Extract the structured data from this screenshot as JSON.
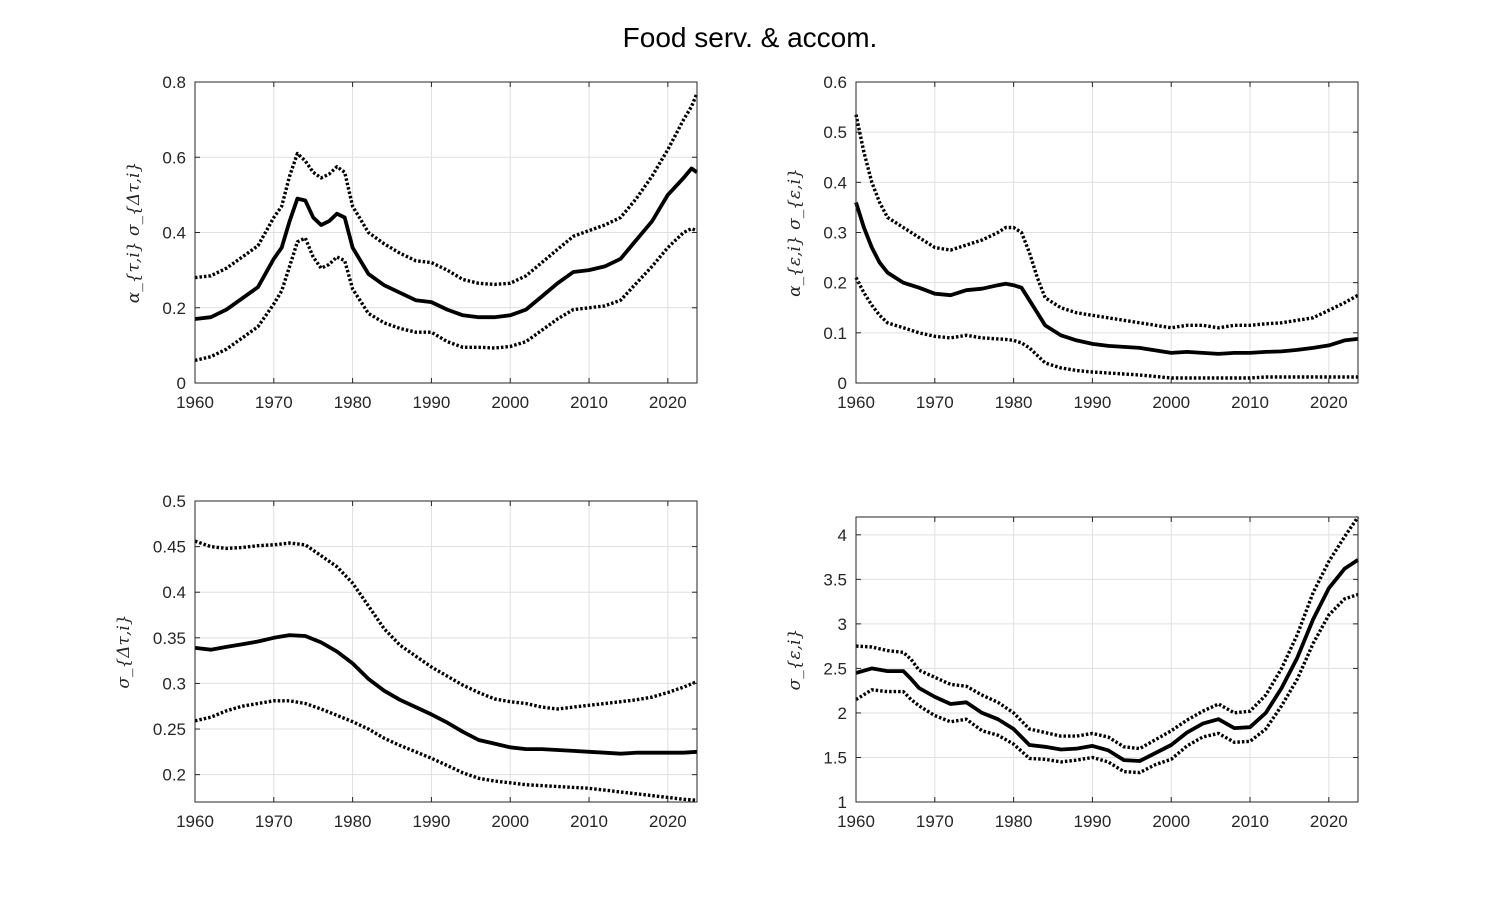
{
  "title": "Food serv. & accom.",
  "chart_data": [
    {
      "type": "line",
      "ylabel": "α_{τ,i} σ_{Δτ,i}",
      "xlim": [
        1960,
        2023.7
      ],
      "ylim": [
        0,
        0.8
      ],
      "xticks": [
        1960,
        1970,
        1980,
        1990,
        2000,
        2010,
        2020
      ],
      "yticks": [
        0,
        0.2,
        0.4,
        0.6,
        0.8
      ],
      "ytick_labels": [
        "0",
        "0.2",
        "0.4",
        "0.6",
        "0.8"
      ],
      "grid": true,
      "series": [
        {
          "style": "solid",
          "x": [
            1960,
            1962,
            1964,
            1966,
            1968,
            1970,
            1971,
            1972,
            1973,
            1974,
            1975,
            1976,
            1977,
            1978,
            1979,
            1980,
            1982,
            1984,
            1986,
            1988,
            1990,
            1992,
            1994,
            1996,
            1998,
            2000,
            2002,
            2004,
            2006,
            2008,
            2010,
            2012,
            2014,
            2016,
            2018,
            2020,
            2022,
            2023,
            2023.7
          ],
          "y": [
            0.17,
            0.175,
            0.195,
            0.225,
            0.255,
            0.33,
            0.36,
            0.43,
            0.49,
            0.485,
            0.44,
            0.42,
            0.43,
            0.45,
            0.44,
            0.36,
            0.29,
            0.26,
            0.24,
            0.22,
            0.215,
            0.195,
            0.18,
            0.175,
            0.175,
            0.18,
            0.195,
            0.23,
            0.265,
            0.295,
            0.3,
            0.31,
            0.33,
            0.38,
            0.43,
            0.5,
            0.545,
            0.57,
            0.56
          ]
        },
        {
          "style": "dotted",
          "x": [
            1960,
            1962,
            1964,
            1966,
            1968,
            1970,
            1971,
            1972,
            1973,
            1974,
            1975,
            1976,
            1977,
            1978,
            1979,
            1980,
            1982,
            1984,
            1986,
            1988,
            1990,
            1992,
            1994,
            1996,
            1998,
            2000,
            2002,
            2004,
            2006,
            2008,
            2010,
            2012,
            2014,
            2016,
            2018,
            2020,
            2022,
            2023,
            2023.7
          ],
          "y": [
            0.28,
            0.285,
            0.305,
            0.335,
            0.365,
            0.44,
            0.47,
            0.55,
            0.61,
            0.59,
            0.56,
            0.545,
            0.555,
            0.575,
            0.56,
            0.47,
            0.4,
            0.37,
            0.345,
            0.325,
            0.32,
            0.3,
            0.275,
            0.265,
            0.262,
            0.265,
            0.285,
            0.32,
            0.355,
            0.39,
            0.405,
            0.42,
            0.44,
            0.49,
            0.55,
            0.62,
            0.7,
            0.735,
            0.77
          ]
        },
        {
          "style": "dotted",
          "x": [
            1960,
            1962,
            1964,
            1966,
            1968,
            1970,
            1971,
            1972,
            1973,
            1974,
            1975,
            1976,
            1977,
            1978,
            1979,
            1980,
            1982,
            1984,
            1986,
            1988,
            1990,
            1992,
            1994,
            1996,
            1998,
            2000,
            2002,
            2004,
            2006,
            2008,
            2010,
            2012,
            2014,
            2016,
            2018,
            2020,
            2022,
            2023,
            2023.7
          ],
          "y": [
            0.06,
            0.07,
            0.09,
            0.12,
            0.15,
            0.21,
            0.245,
            0.31,
            0.375,
            0.385,
            0.335,
            0.305,
            0.315,
            0.335,
            0.325,
            0.25,
            0.185,
            0.16,
            0.145,
            0.135,
            0.135,
            0.11,
            0.095,
            0.095,
            0.093,
            0.097,
            0.11,
            0.14,
            0.17,
            0.195,
            0.2,
            0.205,
            0.22,
            0.265,
            0.31,
            0.36,
            0.4,
            0.41,
            0.405
          ]
        }
      ]
    },
    {
      "type": "line",
      "ylabel": "α_{ε,i} σ_{ε,i}",
      "xlim": [
        1960,
        2023.7
      ],
      "ylim": [
        0,
        0.6
      ],
      "xticks": [
        1960,
        1970,
        1980,
        1990,
        2000,
        2010,
        2020
      ],
      "yticks": [
        0,
        0.1,
        0.2,
        0.3,
        0.4,
        0.5,
        0.6
      ],
      "ytick_labels": [
        "0",
        "0.1",
        "0.2",
        "0.3",
        "0.4",
        "0.5",
        "0.6"
      ],
      "grid": true,
      "series": [
        {
          "style": "solid",
          "x": [
            1960,
            1961,
            1962,
            1963,
            1964,
            1966,
            1968,
            1970,
            1972,
            1974,
            1976,
            1978,
            1979,
            1980,
            1981,
            1982,
            1983,
            1984,
            1986,
            1988,
            1990,
            1992,
            1994,
            1996,
            1998,
            2000,
            2002,
            2004,
            2006,
            2008,
            2010,
            2012,
            2014,
            2016,
            2018,
            2020,
            2022,
            2023.7
          ],
          "y": [
            0.36,
            0.31,
            0.27,
            0.24,
            0.22,
            0.2,
            0.19,
            0.178,
            0.175,
            0.185,
            0.188,
            0.195,
            0.198,
            0.195,
            0.19,
            0.165,
            0.14,
            0.115,
            0.095,
            0.085,
            0.078,
            0.074,
            0.072,
            0.07,
            0.065,
            0.06,
            0.062,
            0.06,
            0.058,
            0.06,
            0.06,
            0.062,
            0.063,
            0.066,
            0.07,
            0.075,
            0.085,
            0.088
          ]
        },
        {
          "style": "dotted",
          "x": [
            1960,
            1961,
            1962,
            1963,
            1964,
            1966,
            1968,
            1970,
            1972,
            1974,
            1976,
            1978,
            1979,
            1980,
            1981,
            1982,
            1983,
            1984,
            1986,
            1988,
            1990,
            1992,
            1994,
            1996,
            1998,
            2000,
            2002,
            2004,
            2006,
            2008,
            2010,
            2012,
            2014,
            2016,
            2018,
            2020,
            2022,
            2023.7
          ],
          "y": [
            0.535,
            0.46,
            0.4,
            0.36,
            0.33,
            0.31,
            0.29,
            0.27,
            0.265,
            0.275,
            0.285,
            0.3,
            0.31,
            0.31,
            0.3,
            0.26,
            0.21,
            0.17,
            0.15,
            0.14,
            0.135,
            0.13,
            0.125,
            0.12,
            0.115,
            0.11,
            0.115,
            0.115,
            0.11,
            0.115,
            0.115,
            0.118,
            0.12,
            0.125,
            0.13,
            0.145,
            0.16,
            0.175
          ]
        },
        {
          "style": "dotted",
          "x": [
            1960,
            1961,
            1962,
            1963,
            1964,
            1966,
            1968,
            1970,
            1972,
            1974,
            1976,
            1978,
            1979,
            1980,
            1981,
            1982,
            1983,
            1984,
            1986,
            1988,
            1990,
            1992,
            1994,
            1996,
            1998,
            2000,
            2002,
            2004,
            2006,
            2008,
            2010,
            2012,
            2014,
            2016,
            2018,
            2020,
            2022,
            2023.7
          ],
          "y": [
            0.21,
            0.18,
            0.155,
            0.135,
            0.12,
            0.11,
            0.1,
            0.093,
            0.09,
            0.095,
            0.09,
            0.088,
            0.087,
            0.085,
            0.08,
            0.07,
            0.055,
            0.04,
            0.03,
            0.025,
            0.022,
            0.02,
            0.018,
            0.016,
            0.013,
            0.01,
            0.01,
            0.01,
            0.01,
            0.01,
            0.01,
            0.012,
            0.012,
            0.012,
            0.012,
            0.012,
            0.012,
            0.012
          ]
        }
      ]
    },
    {
      "type": "line",
      "ylabel": "σ_{Δτ,i}",
      "xlim": [
        1960,
        2023.7
      ],
      "ylim": [
        0.17,
        0.5
      ],
      "xticks": [
        1960,
        1970,
        1980,
        1990,
        2000,
        2010,
        2020
      ],
      "yticks": [
        0.2,
        0.25,
        0.3,
        0.35,
        0.4,
        0.45,
        0.5
      ],
      "ytick_labels": [
        "0.2",
        "0.25",
        "0.3",
        "0.35",
        "0.4",
        "0.45",
        "0.5"
      ],
      "grid": true,
      "series": [
        {
          "style": "solid",
          "x": [
            1960,
            1962,
            1964,
            1966,
            1968,
            1970,
            1972,
            1974,
            1976,
            1978,
            1980,
            1982,
            1984,
            1986,
            1988,
            1990,
            1992,
            1994,
            1996,
            1998,
            2000,
            2002,
            2004,
            2006,
            2008,
            2010,
            2012,
            2014,
            2016,
            2018,
            2020,
            2022,
            2023.7
          ],
          "y": [
            0.339,
            0.337,
            0.34,
            0.343,
            0.346,
            0.35,
            0.353,
            0.352,
            0.345,
            0.335,
            0.322,
            0.305,
            0.292,
            0.282,
            0.274,
            0.266,
            0.257,
            0.247,
            0.238,
            0.234,
            0.23,
            0.228,
            0.228,
            0.227,
            0.226,
            0.225,
            0.224,
            0.223,
            0.224,
            0.224,
            0.224,
            0.224,
            0.225
          ]
        },
        {
          "style": "dotted",
          "x": [
            1960,
            1962,
            1964,
            1966,
            1968,
            1970,
            1972,
            1974,
            1976,
            1978,
            1980,
            1982,
            1984,
            1986,
            1988,
            1990,
            1992,
            1994,
            1996,
            1998,
            2000,
            2002,
            2004,
            2006,
            2008,
            2010,
            2012,
            2014,
            2016,
            2018,
            2020,
            2022,
            2023.7
          ],
          "y": [
            0.456,
            0.45,
            0.448,
            0.449,
            0.451,
            0.452,
            0.454,
            0.452,
            0.44,
            0.428,
            0.41,
            0.385,
            0.36,
            0.342,
            0.33,
            0.318,
            0.308,
            0.298,
            0.29,
            0.283,
            0.28,
            0.278,
            0.274,
            0.272,
            0.274,
            0.276,
            0.278,
            0.28,
            0.282,
            0.285,
            0.29,
            0.296,
            0.302
          ]
        },
        {
          "style": "dotted",
          "x": [
            1960,
            1962,
            1964,
            1966,
            1968,
            1970,
            1972,
            1974,
            1976,
            1978,
            1980,
            1982,
            1984,
            1986,
            1988,
            1990,
            1992,
            1994,
            1996,
            1998,
            2000,
            2002,
            2004,
            2006,
            2008,
            2010,
            2012,
            2014,
            2016,
            2018,
            2020,
            2022,
            2023.7
          ],
          "y": [
            0.259,
            0.263,
            0.27,
            0.275,
            0.278,
            0.281,
            0.281,
            0.278,
            0.272,
            0.265,
            0.258,
            0.25,
            0.24,
            0.232,
            0.225,
            0.218,
            0.21,
            0.202,
            0.196,
            0.193,
            0.191,
            0.189,
            0.188,
            0.187,
            0.186,
            0.185,
            0.183,
            0.181,
            0.179,
            0.177,
            0.175,
            0.173,
            0.172
          ]
        }
      ]
    },
    {
      "type": "line",
      "ylabel": "σ_{ε,i}",
      "xlim": [
        1960,
        2023.7
      ],
      "ylim": [
        1,
        4.2
      ],
      "xticks": [
        1960,
        1970,
        1980,
        1990,
        2000,
        2010,
        2020
      ],
      "yticks": [
        1,
        1.5,
        2,
        2.5,
        3,
        3.5,
        4
      ],
      "ytick_labels": [
        "1",
        "1.5",
        "2",
        "2.5",
        "3",
        "3.5",
        "4"
      ],
      "grid": true,
      "series": [
        {
          "style": "solid",
          "x": [
            1960,
            1962,
            1964,
            1966,
            1967,
            1968,
            1970,
            1972,
            1974,
            1976,
            1978,
            1980,
            1982,
            1984,
            1986,
            1988,
            1990,
            1992,
            1994,
            1996,
            1998,
            2000,
            2002,
            2004,
            2006,
            2008,
            2010,
            2012,
            2014,
            2016,
            2018,
            2020,
            2022,
            2023.7
          ],
          "y": [
            2.45,
            2.5,
            2.47,
            2.47,
            2.38,
            2.28,
            2.18,
            2.1,
            2.12,
            2.0,
            1.93,
            1.82,
            1.64,
            1.62,
            1.59,
            1.6,
            1.63,
            1.58,
            1.47,
            1.46,
            1.55,
            1.64,
            1.78,
            1.88,
            1.93,
            1.83,
            1.84,
            2.0,
            2.28,
            2.62,
            3.05,
            3.4,
            3.62,
            3.72
          ]
        },
        {
          "style": "dotted",
          "x": [
            1960,
            1962,
            1964,
            1966,
            1967,
            1968,
            1970,
            1972,
            1974,
            1976,
            1978,
            1980,
            1982,
            1984,
            1986,
            1988,
            1990,
            1992,
            1994,
            1996,
            1998,
            2000,
            2002,
            2004,
            2006,
            2008,
            2010,
            2012,
            2014,
            2016,
            2018,
            2020,
            2022,
            2023.7
          ],
          "y": [
            2.75,
            2.74,
            2.7,
            2.68,
            2.6,
            2.48,
            2.4,
            2.32,
            2.3,
            2.2,
            2.12,
            2.0,
            1.82,
            1.78,
            1.74,
            1.74,
            1.77,
            1.73,
            1.62,
            1.6,
            1.7,
            1.8,
            1.92,
            2.02,
            2.1,
            2.0,
            2.02,
            2.2,
            2.5,
            2.88,
            3.35,
            3.7,
            3.98,
            4.2
          ]
        },
        {
          "style": "dotted",
          "x": [
            1960,
            1962,
            1964,
            1966,
            1967,
            1968,
            1970,
            1972,
            1974,
            1976,
            1978,
            1980,
            1982,
            1984,
            1986,
            1988,
            1990,
            1992,
            1994,
            1996,
            1998,
            2000,
            2002,
            2004,
            2006,
            2008,
            2010,
            2012,
            2014,
            2016,
            2018,
            2020,
            2022,
            2023.7
          ],
          "y": [
            2.15,
            2.26,
            2.24,
            2.24,
            2.15,
            2.08,
            1.97,
            1.9,
            1.93,
            1.8,
            1.75,
            1.65,
            1.49,
            1.48,
            1.45,
            1.47,
            1.5,
            1.45,
            1.34,
            1.33,
            1.42,
            1.48,
            1.63,
            1.73,
            1.77,
            1.67,
            1.68,
            1.82,
            2.08,
            2.38,
            2.78,
            3.1,
            3.28,
            3.33
          ]
        }
      ]
    }
  ]
}
